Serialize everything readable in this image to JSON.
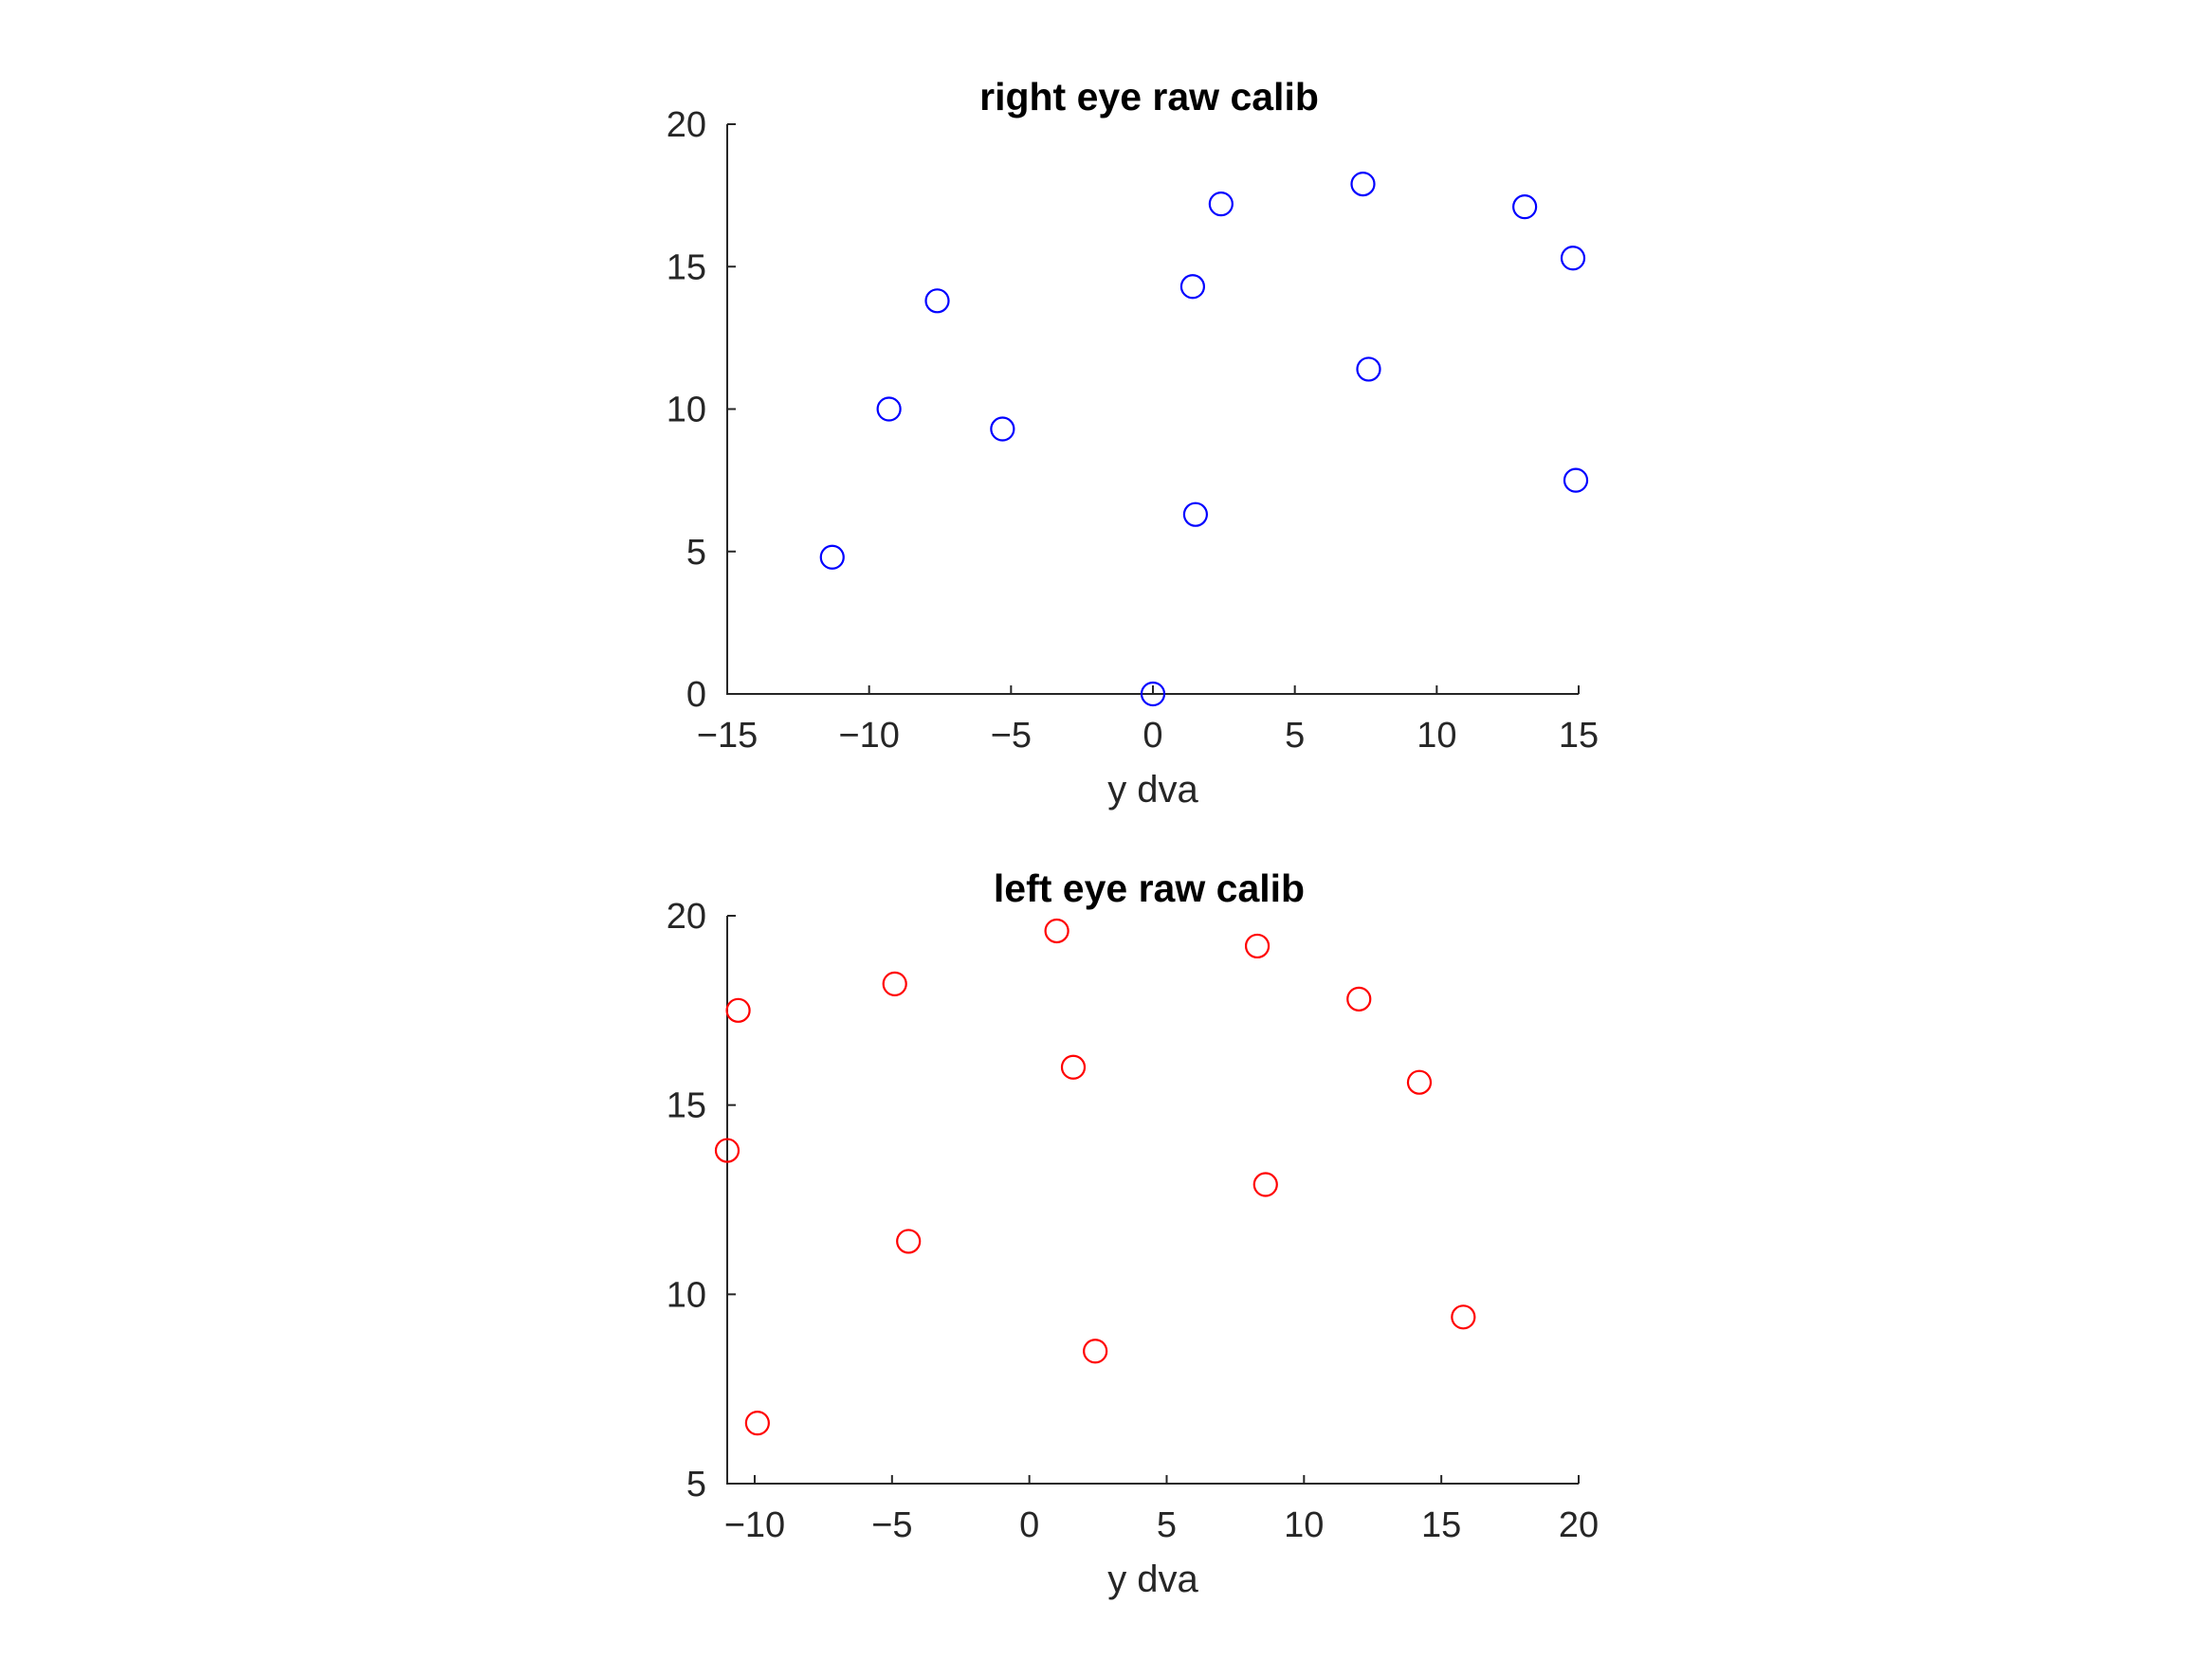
{
  "chart_data": [
    {
      "type": "scatter",
      "title": "right eye raw calib",
      "xlabel": "y dva",
      "ylabel": "",
      "xlim": [
        -15,
        15
      ],
      "ylim": [
        0,
        20
      ],
      "xticks": [
        -15,
        -10,
        -5,
        0,
        5,
        10,
        15
      ],
      "yticks": [
        0,
        5,
        10,
        15,
        20
      ],
      "grid": false,
      "marker": "circle",
      "color": "#0000ff",
      "points": [
        {
          "x": 0.0,
          "y": 0.0
        },
        {
          "x": -11.3,
          "y": 4.8
        },
        {
          "x": -9.3,
          "y": 10.0
        },
        {
          "x": -7.6,
          "y": 13.8
        },
        {
          "x": -5.3,
          "y": 9.3
        },
        {
          "x": 1.4,
          "y": 14.3
        },
        {
          "x": 1.5,
          "y": 6.3
        },
        {
          "x": 2.4,
          "y": 17.2
        },
        {
          "x": 7.4,
          "y": 17.9
        },
        {
          "x": 7.6,
          "y": 11.4
        },
        {
          "x": 13.1,
          "y": 17.1
        },
        {
          "x": 14.8,
          "y": 15.3
        },
        {
          "x": 14.9,
          "y": 7.5
        }
      ]
    },
    {
      "type": "scatter",
      "title": "left eye raw calib",
      "xlabel": "y dva",
      "ylabel": "",
      "xlim": [
        -11,
        20
      ],
      "ylim": [
        5,
        20
      ],
      "xticks": [
        -10,
        -5,
        0,
        5,
        10,
        15,
        20
      ],
      "yticks": [
        5,
        10,
        15,
        20
      ],
      "grid": false,
      "marker": "circle",
      "color": "#ff0000",
      "points": [
        {
          "x": -11.0,
          "y": 13.8
        },
        {
          "x": -10.6,
          "y": 17.5
        },
        {
          "x": -9.9,
          "y": 6.6
        },
        {
          "x": -4.9,
          "y": 18.2
        },
        {
          "x": -4.4,
          "y": 11.4
        },
        {
          "x": 1.0,
          "y": 19.6
        },
        {
          "x": 1.6,
          "y": 16.0
        },
        {
          "x": 2.4,
          "y": 8.5
        },
        {
          "x": 8.3,
          "y": 19.2
        },
        {
          "x": 8.6,
          "y": 12.9
        },
        {
          "x": 12.0,
          "y": 17.8
        },
        {
          "x": 14.2,
          "y": 15.6
        },
        {
          "x": 15.8,
          "y": 9.4
        }
      ]
    }
  ]
}
